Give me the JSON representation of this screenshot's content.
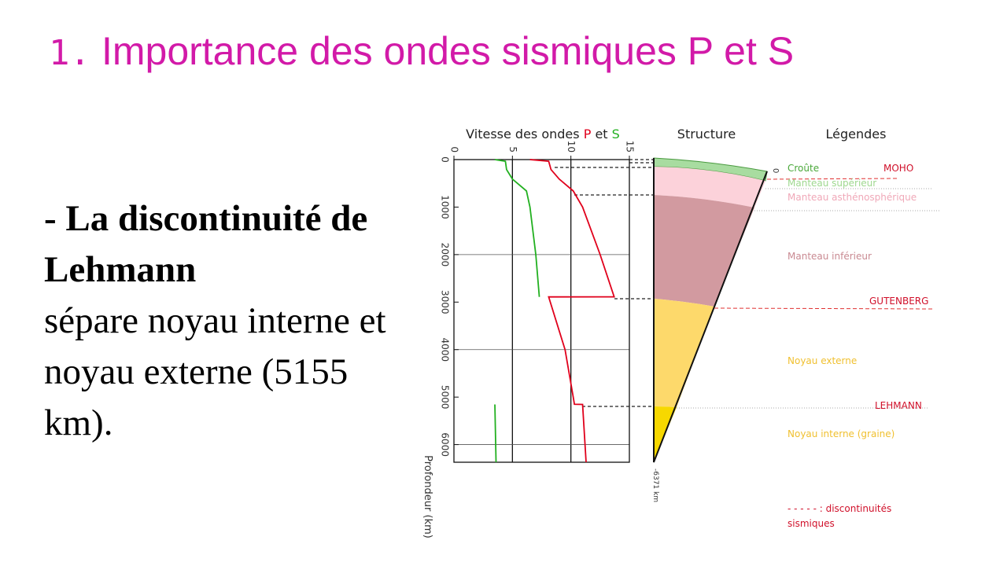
{
  "title": {
    "number": "1.",
    "text": "Importance des ondes sismiques P et S"
  },
  "body": {
    "heading": "- La discontinuité de Lehmann",
    "text": "sépare noyau interne et noyau externe (5155 km)."
  },
  "structure": {
    "title": "Structure",
    "legend_title": "Légendes",
    "top": "0",
    "bottom": "-6371 km",
    "layers": [
      "Croûte",
      "Manteau supérieur",
      "Manteau asthénosphérique",
      "Manteau inférieur",
      "Noyau externe",
      "Noyau interne (graine)"
    ],
    "discontinuities": [
      "MOHO",
      "GUTENBERG",
      "LEHMANN"
    ],
    "note": [
      "- - - - - : discontinuités",
      "sismiques"
    ]
  },
  "chart_data": {
    "type": "line",
    "title": "Vitesse des ondes",
    "title_and": "et",
    "ylabel": "Profondeur (km)",
    "y": [
      0,
      35,
      210,
      410,
      660,
      1000,
      2000,
      2890,
      2891,
      4000,
      5000,
      5150,
      5155,
      6371
    ],
    "series": [
      {
        "name": "P",
        "color": "#e0001b",
        "values": [
          6.5,
          8.1,
          8.3,
          9,
          10.2,
          11,
          12.5,
          13.7,
          8.1,
          9.5,
          10.2,
          10.3,
          11,
          11.3
        ]
      },
      {
        "name": "S",
        "color": "#22b020",
        "values": [
          3.5,
          4.4,
          4.5,
          5,
          6.2,
          6.5,
          7,
          7.3,
          null,
          null,
          null,
          null,
          3.5,
          3.6
        ]
      }
    ],
    "xlim": [
      0,
      15
    ],
    "xticks": [
      0,
      5,
      10,
      15
    ],
    "ylim": [
      0,
      6371
    ],
    "yticks": [
      0,
      1000,
      2000,
      3000,
      4000,
      5000,
      6000
    ],
    "xgrid": [
      5,
      10
    ],
    "ygrid": [
      2000,
      4000,
      6000
    ],
    "y_inverted": true
  }
}
